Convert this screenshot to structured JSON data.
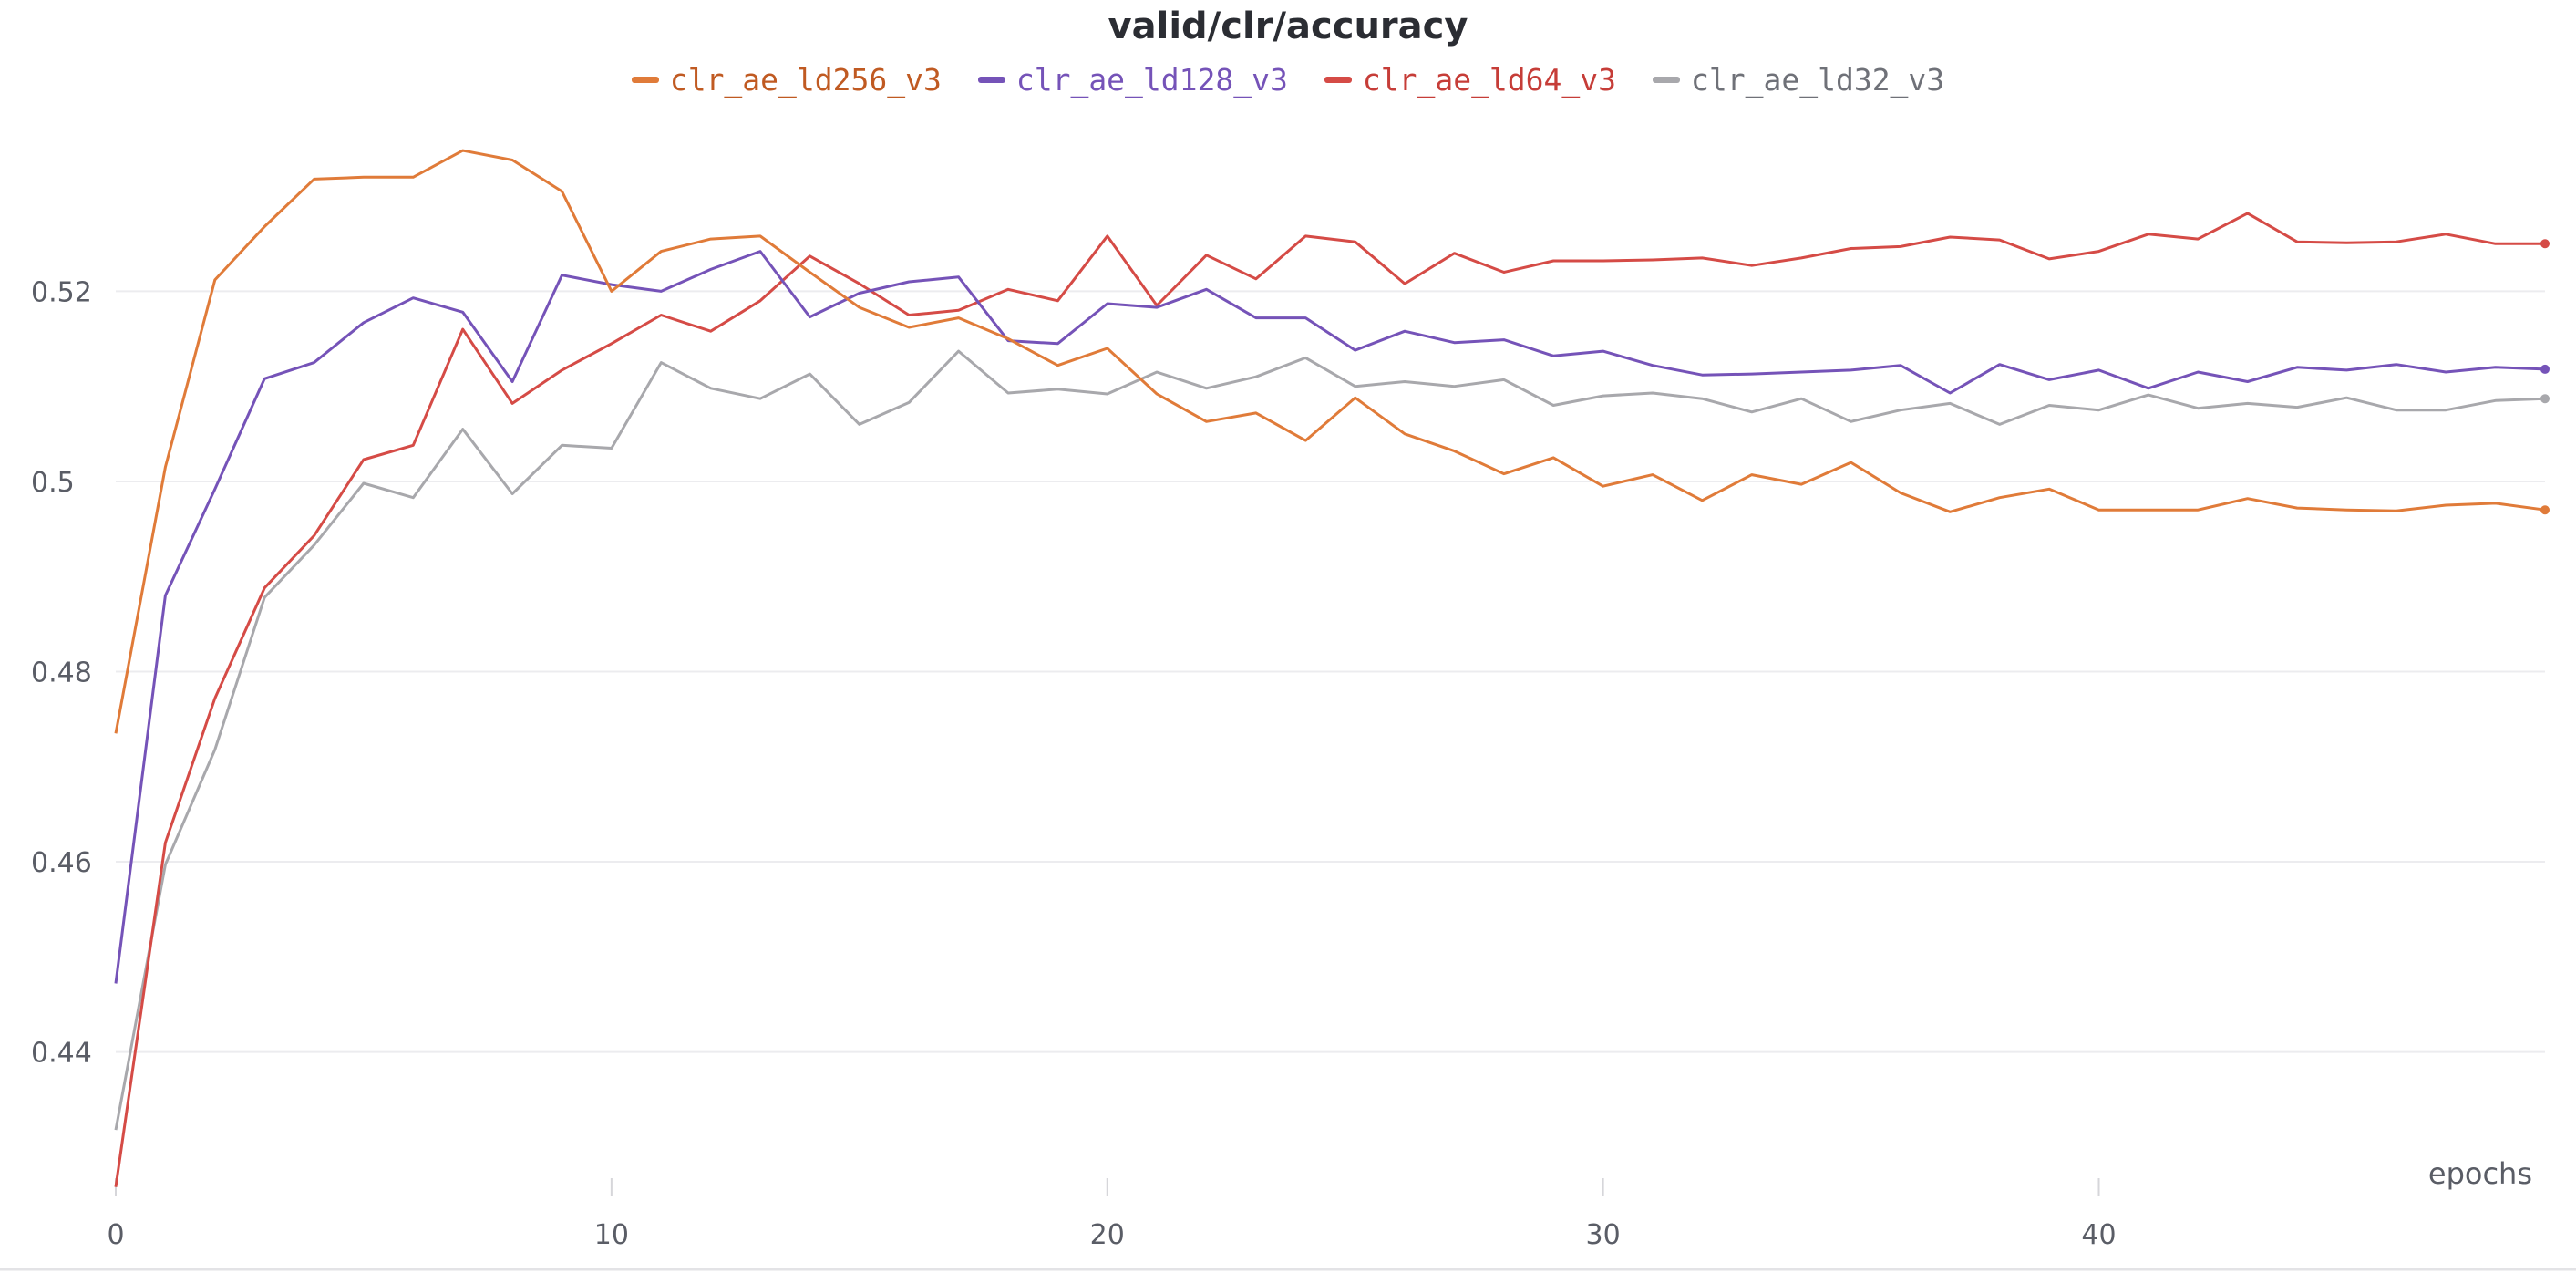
{
  "chart_data": {
    "type": "line",
    "title": "valid/clr/accuracy",
    "xlabel": "epochs",
    "ylabel": "",
    "xlim": [
      0,
      49
    ],
    "ylim": [
      0.425,
      0.542
    ],
    "xticks": [
      0,
      10,
      20,
      30,
      40
    ],
    "yticks": [
      0.44,
      0.46,
      0.48,
      0.5,
      0.52
    ],
    "ytick_labels": [
      "0.44",
      "0.46",
      "0.48",
      "0.5",
      "0.52"
    ],
    "grid": true,
    "legend_position": "top-center",
    "x": [
      0,
      1,
      2,
      3,
      4,
      5,
      6,
      7,
      8,
      9,
      10,
      11,
      12,
      13,
      14,
      15,
      16,
      17,
      18,
      19,
      20,
      21,
      22,
      23,
      24,
      25,
      26,
      27,
      28,
      29,
      30,
      31,
      32,
      33,
      34,
      35,
      36,
      37,
      38,
      39,
      40,
      41,
      42,
      43,
      44,
      45,
      46,
      47,
      48,
      49
    ],
    "series": [
      {
        "name": "clr_ae_ld256_v3",
        "color": "#e07b39",
        "text_color": "#c05a22",
        "values": [
          0.4735,
          0.5015,
          0.5212,
          0.5268,
          0.5318,
          0.532,
          0.532,
          0.5348,
          0.5338,
          0.5305,
          0.52,
          0.5242,
          0.5255,
          0.5258,
          0.522,
          0.5183,
          0.5162,
          0.5172,
          0.515,
          0.5122,
          0.514,
          0.5092,
          0.5063,
          0.5072,
          0.5043,
          0.5088,
          0.505,
          0.5032,
          0.5008,
          0.5025,
          0.4995,
          0.5007,
          0.498,
          0.5007,
          0.4997,
          0.502,
          0.4988,
          0.4968,
          0.4983,
          0.4992,
          0.497,
          0.497,
          0.497,
          0.4982,
          0.4972,
          0.497,
          0.4969,
          0.4975,
          0.4977,
          0.497
        ]
      },
      {
        "name": "clr_ae_ld128_v3",
        "color": "#7553b8",
        "text_color": "#7553b8",
        "values": [
          0.4472,
          0.488,
          0.4992,
          0.5108,
          0.5125,
          0.5167,
          0.5193,
          0.5178,
          0.5105,
          0.5217,
          0.5207,
          0.52,
          0.5223,
          0.5242,
          0.5173,
          0.5198,
          0.521,
          0.5215,
          0.5148,
          0.5145,
          0.5187,
          0.5183,
          0.5202,
          0.5172,
          0.5172,
          0.5138,
          0.5158,
          0.5146,
          0.5149,
          0.5132,
          0.5137,
          0.5122,
          0.5112,
          0.5113,
          0.5115,
          0.5117,
          0.5122,
          0.5093,
          0.5123,
          0.5107,
          0.5117,
          0.5098,
          0.5115,
          0.5105,
          0.512,
          0.5117,
          0.5123,
          0.5115,
          0.512,
          0.5118
        ]
      },
      {
        "name": "clr_ae_ld64_v3",
        "color": "#d54b46",
        "text_color": "#c63d38",
        "values": [
          0.4258,
          0.462,
          0.4772,
          0.4888,
          0.4943,
          0.5023,
          0.5038,
          0.516,
          0.5082,
          0.5117,
          0.5145,
          0.5175,
          0.5158,
          0.519,
          0.5237,
          0.5208,
          0.5175,
          0.518,
          0.5202,
          0.519,
          0.5258,
          0.5185,
          0.5238,
          0.5213,
          0.5258,
          0.5252,
          0.5208,
          0.524,
          0.522,
          0.5232,
          0.5232,
          0.5233,
          0.5235,
          0.5227,
          0.5235,
          0.5245,
          0.5247,
          0.5257,
          0.5254,
          0.5234,
          0.5242,
          0.526,
          0.5255,
          0.5282,
          0.5252,
          0.5251,
          0.5252,
          0.526,
          0.525,
          0.525
        ]
      },
      {
        "name": "clr_ae_ld32_v3",
        "color": "#a8a8ac",
        "text_color": "#6f7178",
        "values": [
          0.4318,
          0.4597,
          0.4718,
          0.4878,
          0.4933,
          0.4998,
          0.4983,
          0.5055,
          0.4987,
          0.5038,
          0.5035,
          0.5125,
          0.5098,
          0.5087,
          0.5113,
          0.506,
          0.5083,
          0.5137,
          0.5093,
          0.5097,
          0.5092,
          0.5115,
          0.5098,
          0.511,
          0.513,
          0.51,
          0.5105,
          0.51,
          0.5107,
          0.508,
          0.509,
          0.5093,
          0.5087,
          0.5073,
          0.5087,
          0.5063,
          0.5075,
          0.5082,
          0.506,
          0.508,
          0.5075,
          0.5091,
          0.5077,
          0.5082,
          0.5078,
          0.5088,
          0.5075,
          0.5075,
          0.5085,
          0.5087
        ]
      }
    ]
  }
}
